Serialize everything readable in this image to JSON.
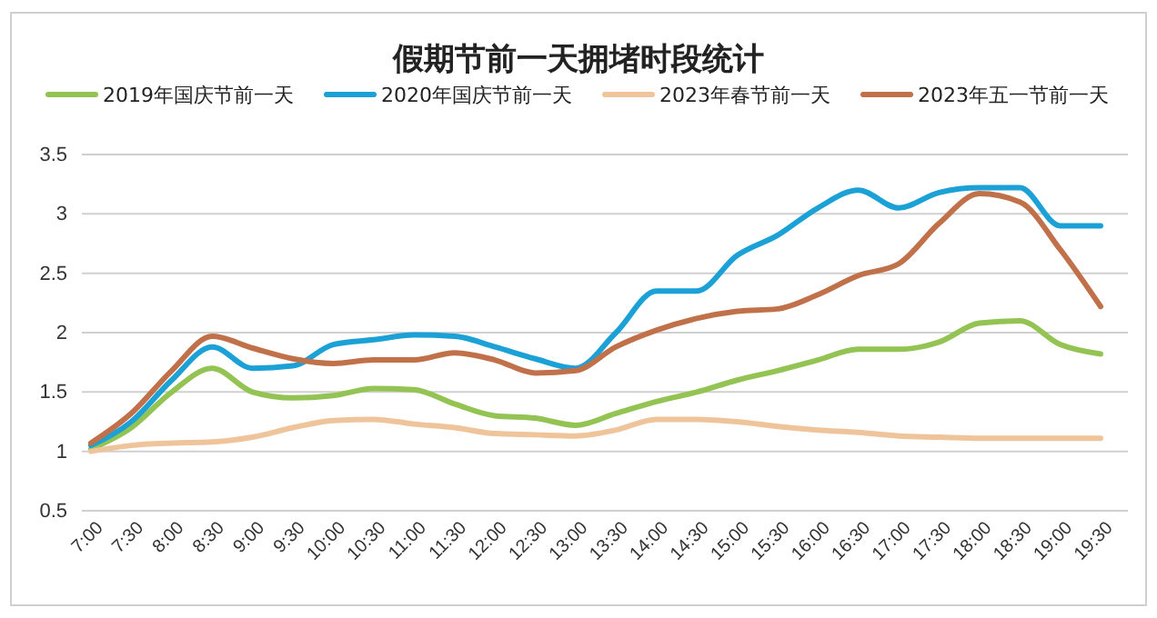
{
  "chart_data": {
    "type": "line",
    "title": "假期节前一天拥堵时段统计",
    "categories": [
      "7:00",
      "7:30",
      "8:00",
      "8:30",
      "9:00",
      "9:30",
      "10:00",
      "10:30",
      "11:00",
      "11:30",
      "12:00",
      "12:30",
      "13:00",
      "13:30",
      "14:00",
      "14:30",
      "15:00",
      "15:30",
      "16:00",
      "16:30",
      "17:00",
      "17:30",
      "18:00",
      "18:30",
      "19:00",
      "19:30"
    ],
    "series": [
      {
        "name": "2019年国庆节前一天",
        "color": "#92c353",
        "values": [
          1.02,
          1.2,
          1.5,
          1.7,
          1.5,
          1.45,
          1.47,
          1.53,
          1.52,
          1.4,
          1.3,
          1.28,
          1.22,
          1.32,
          1.42,
          1.5,
          1.6,
          1.68,
          1.77,
          1.86,
          1.86,
          1.92,
          2.08,
          2.1,
          1.9,
          1.82
        ]
      },
      {
        "name": "2020年国庆节前一天",
        "color": "#1ba1d6",
        "values": [
          1.05,
          1.25,
          1.6,
          1.88,
          1.7,
          1.72,
          1.9,
          1.94,
          1.98,
          1.97,
          1.88,
          1.78,
          1.7,
          2.0,
          2.35,
          2.35,
          2.65,
          2.82,
          3.05,
          3.2,
          3.05,
          3.18,
          3.22,
          3.22,
          2.9,
          2.9
        ]
      },
      {
        "name": "2023年春节前一天",
        "color": "#f0c49b",
        "values": [
          1.0,
          1.05,
          1.07,
          1.08,
          1.12,
          1.2,
          1.26,
          1.27,
          1.23,
          1.2,
          1.15,
          1.14,
          1.13,
          1.18,
          1.27,
          1.27,
          1.25,
          1.21,
          1.18,
          1.16,
          1.13,
          1.12,
          1.11,
          1.11,
          1.11,
          1.11
        ]
      },
      {
        "name": "2023年五一节前一天",
        "color": "#c0714a",
        "values": [
          1.07,
          1.32,
          1.68,
          1.97,
          1.87,
          1.78,
          1.74,
          1.77,
          1.77,
          1.83,
          1.77,
          1.66,
          1.68,
          1.88,
          2.02,
          2.12,
          2.18,
          2.2,
          2.32,
          2.48,
          2.58,
          2.92,
          3.17,
          3.1,
          2.7,
          2.22
        ]
      }
    ],
    "ylim": [
      0.5,
      3.5
    ],
    "yticks": [
      0.5,
      1,
      1.5,
      2,
      2.5,
      3,
      3.5
    ],
    "grid": "y",
    "legend": "top",
    "marker": "none",
    "line_style": "solid"
  }
}
